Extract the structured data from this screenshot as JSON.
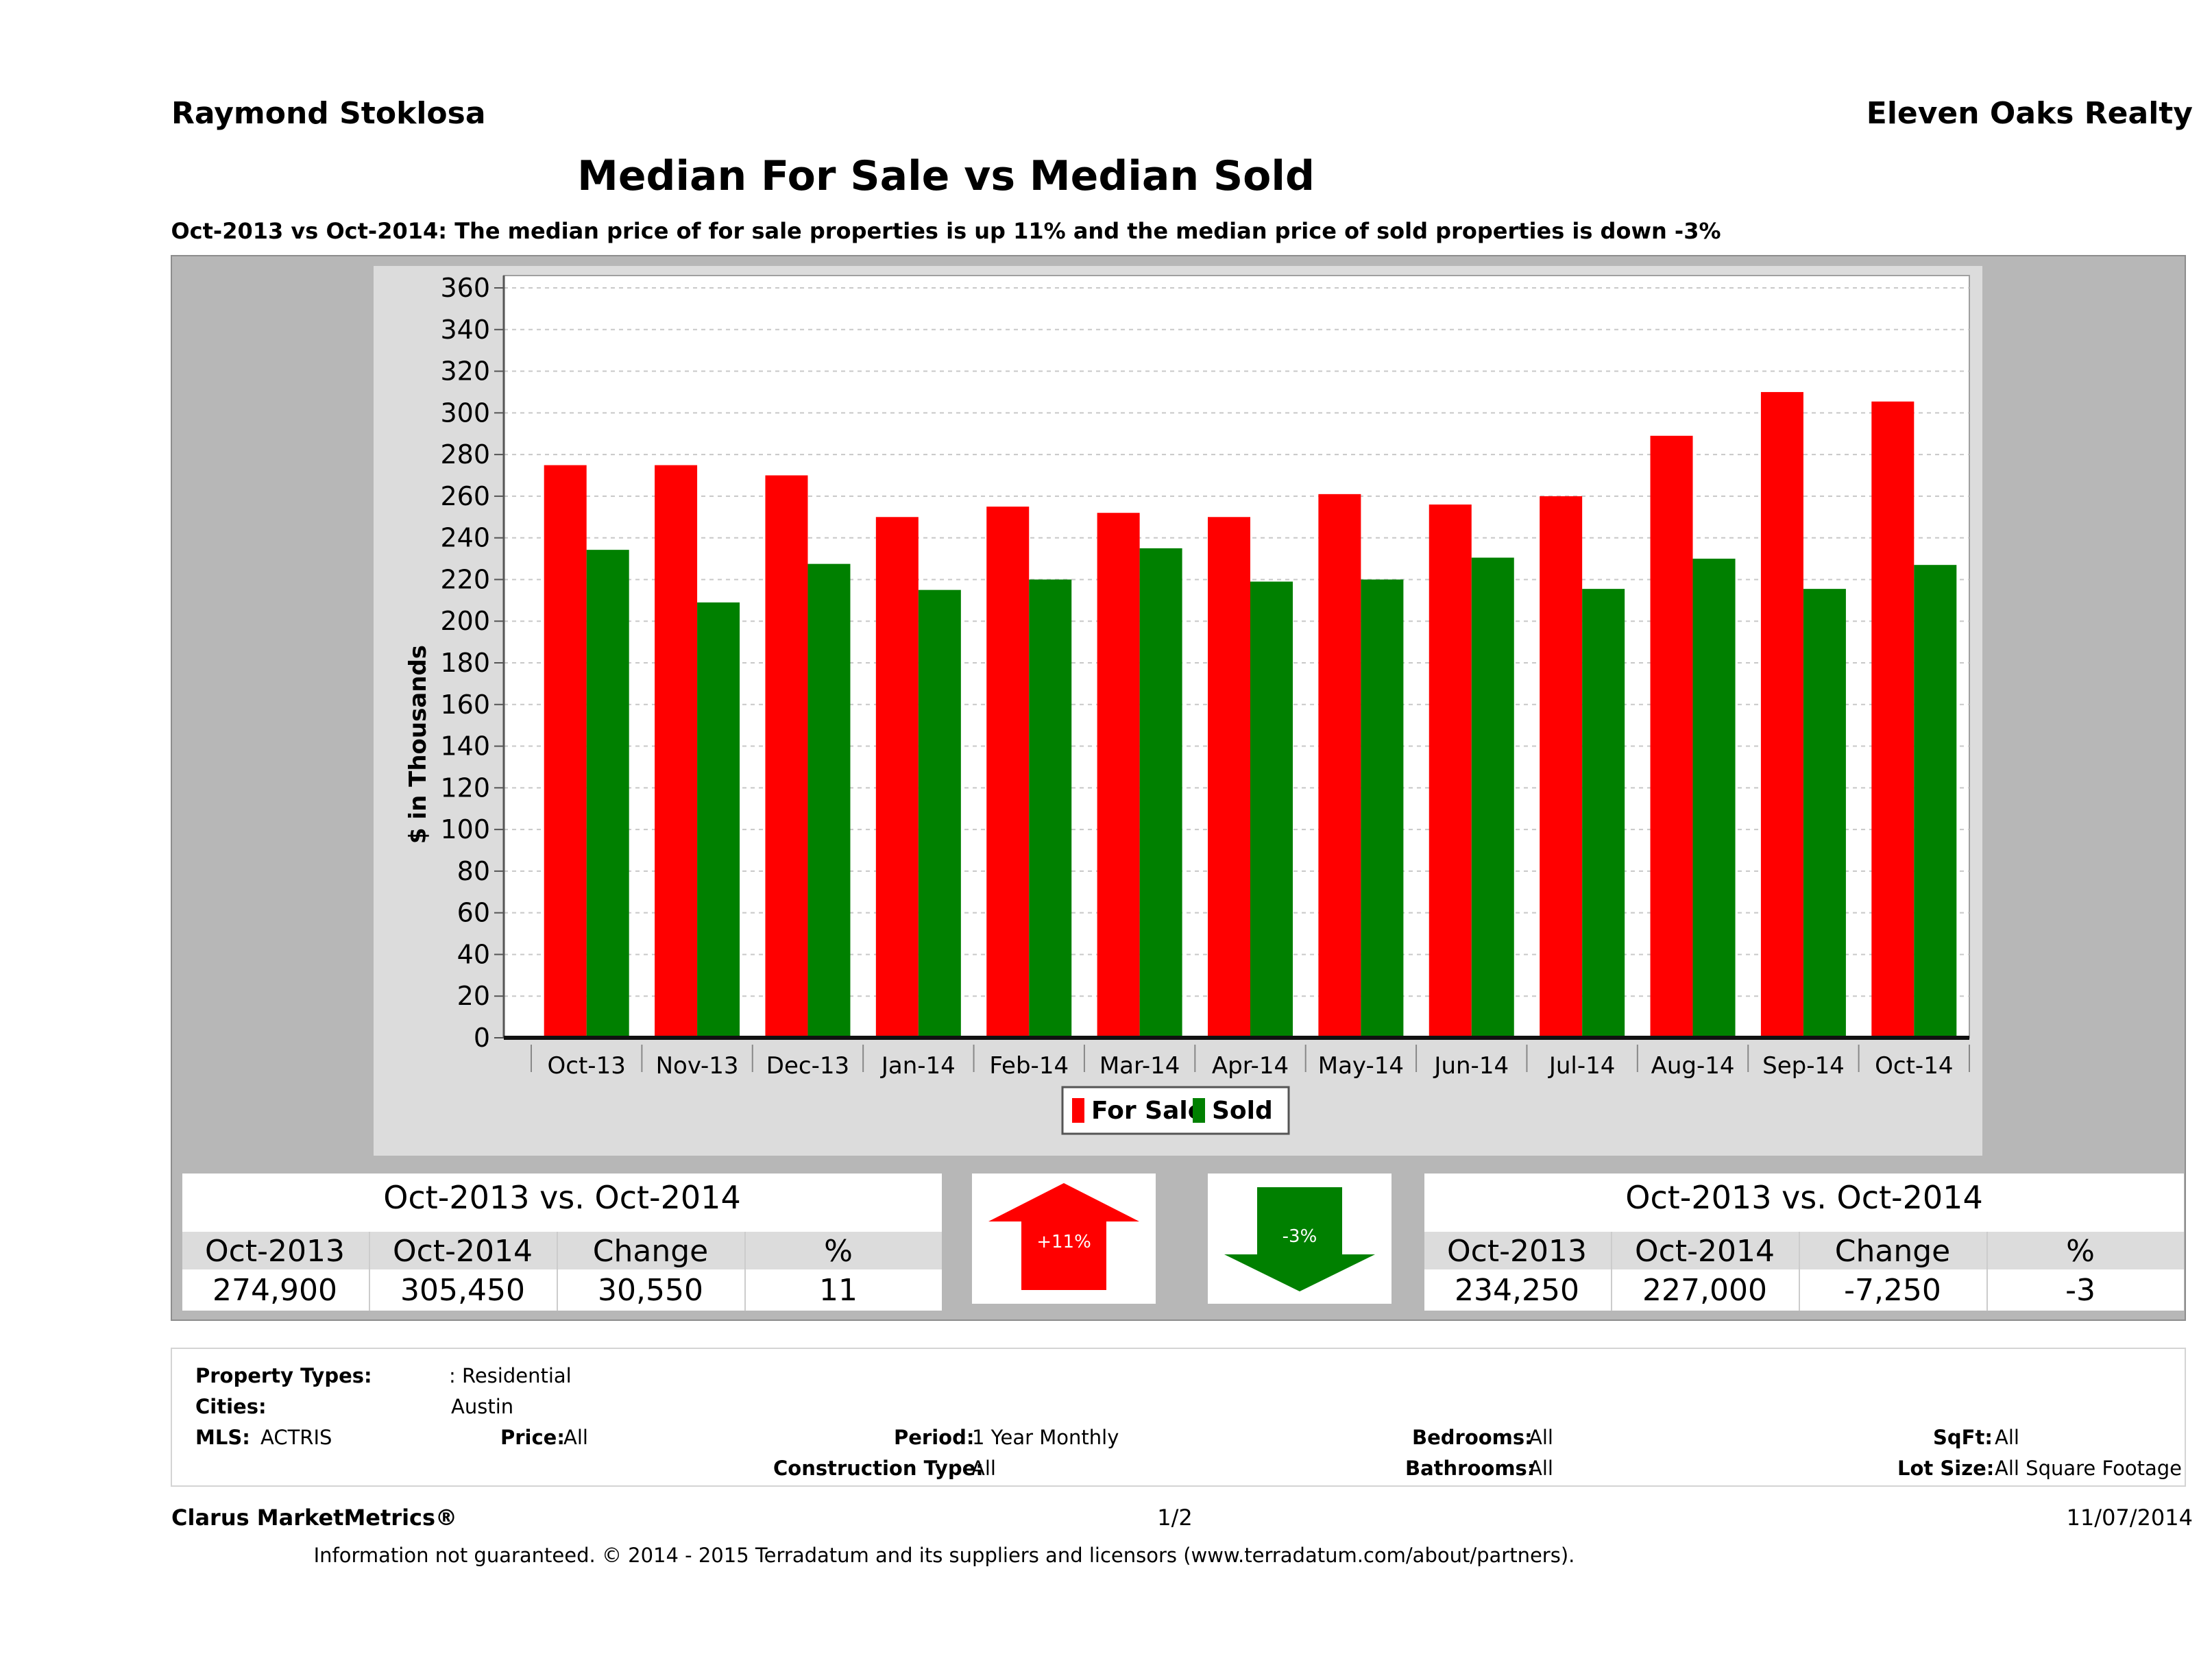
{
  "header": {
    "agent_name": "Raymond Stoklosa",
    "brokerage": "Eleven Oaks Realty",
    "title": "Median For Sale vs Median Sold",
    "subtitle": "Oct-2013 vs Oct-2014: The median price of for sale properties is up 11% and the median price of sold properties is down -3%"
  },
  "chart_data": {
    "type": "bar",
    "categories": [
      "Oct-13",
      "Nov-13",
      "Dec-13",
      "Jan-14",
      "Feb-14",
      "Mar-14",
      "Apr-14",
      "May-14",
      "Jun-14",
      "Jul-14",
      "Aug-14",
      "Sep-14",
      "Oct-14"
    ],
    "series": [
      {
        "name": "For Sale",
        "color": "#ff0000",
        "values": [
          274.9,
          274.9,
          270,
          250,
          255,
          252,
          250,
          261,
          256,
          260,
          289,
          310,
          305.45
        ]
      },
      {
        "name": "Sold",
        "color": "#008000",
        "values": [
          234.25,
          209,
          227.5,
          215,
          220,
          235,
          219,
          220,
          230.5,
          215.5,
          230,
          215.5,
          227
        ]
      }
    ],
    "ylabel": "$ in Thousands",
    "ylim": [
      0,
      360
    ],
    "yticks": [
      0,
      20,
      40,
      60,
      80,
      100,
      120,
      140,
      160,
      180,
      200,
      220,
      240,
      260,
      280,
      300,
      320,
      340,
      360
    ],
    "grid": true,
    "legend_position": "bottom-center"
  },
  "for_sale_stats": {
    "title": "Oct-2013 vs. Oct-2014",
    "headers": [
      "Oct-2013",
      "Oct-2014",
      "Change",
      "%"
    ],
    "values": [
      "274,900",
      "305,450",
      "30,550",
      "11"
    ],
    "arrow_label": "+11%",
    "arrow_color": "#ff0000"
  },
  "sold_stats": {
    "title": "Oct-2013 vs. Oct-2014",
    "headers": [
      "Oct-2013",
      "Oct-2014",
      "Change",
      "%"
    ],
    "values": [
      "234,250",
      "227,000",
      "-7,250",
      "-3"
    ],
    "arrow_label": "-3%",
    "arrow_color": "#008000"
  },
  "criteria": {
    "property_types_label": "Property Types:",
    "property_types_value": ": Residential",
    "cities_label": "Cities:",
    "cities_value": "Austin",
    "mls_label": "MLS:",
    "mls_value": "ACTRIS",
    "price_label": "Price:",
    "price_value": "All",
    "period_label": "Period:",
    "period_value": "1 Year Monthly",
    "construction_label": "Construction Type:",
    "construction_value": "All",
    "bedrooms_label": "Bedrooms:",
    "bedrooms_value": "All",
    "bathrooms_label": "Bathrooms:",
    "bathrooms_value": "All",
    "sqft_label": "SqFt:",
    "sqft_value": "All",
    "lotsize_label": "Lot Size:",
    "lotsize_value": "All Square Footage"
  },
  "footer": {
    "brand": "Clarus MarketMetrics®",
    "page": "1/2",
    "date": "11/07/2014",
    "disclaimer": "Information not guaranteed. © 2014 - 2015 Terradatum and its suppliers and licensors (www.terradatum.com/about/partners)."
  }
}
